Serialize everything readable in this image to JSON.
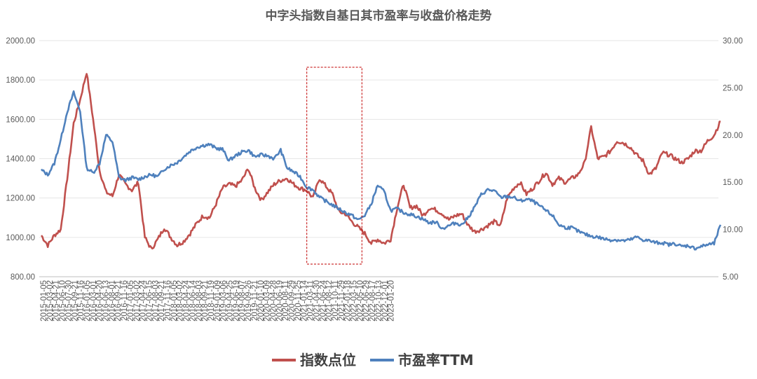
{
  "chart_data": {
    "type": "line",
    "title": "中字头指数自基日其市盈率与收盘价格走势",
    "left_axis": {
      "min": 800,
      "max": 2000,
      "ticks": [
        "800.00",
        "1000.00",
        "1200.00",
        "1400.00",
        "1600.00",
        "1800.00",
        "2000.00"
      ]
    },
    "right_axis": {
      "min": 5,
      "max": 30,
      "ticks": [
        "5.00",
        "10.00",
        "15.00",
        "20.00",
        "25.00",
        "30.00"
      ]
    },
    "x_tick_labels": [
      "2015-01-05",
      "2015-03-02",
      "2015-04-21",
      "2015-06-10",
      "2015-07-30",
      "2015-09-21",
      "2015-11-16",
      "2016-01-05",
      "2016-03-01",
      "2016-04-20",
      "2016-06-13",
      "2016-08-01",
      "2016-09-21",
      "2016-11-16",
      "2017-01-05",
      "2017-03-02",
      "2017-04-24",
      "2017-06-15",
      "2017-08-03",
      "2017-09-21",
      "2017-11-16",
      "2018-01-05",
      "2018-03-02",
      "2018-04-24",
      "2018-06-14",
      "2018-08-03",
      "2018-09-21",
      "2018-11-19",
      "2019-01-09",
      "2019-03-06",
      "2019-04-25",
      "2019-06-19",
      "2019-08-07",
      "2019-09-26",
      "2019-11-21",
      "2020-01-10",
      "2020-03-09",
      "2020-04-28",
      "2020-06-19",
      "2020-08-11",
      "2020-09-29",
      "2020-11-25",
      "2021-01-14",
      "2021-03-11",
      "2021-04-30",
      "2021-06-24",
      "2021-08-12",
      "2021-10-11",
      "2021-11-29",
      "2022-01-18",
      "2022-03-15",
      "2022-05-10",
      "2022-06-29",
      "2022-08-17",
      "2022-10-13",
      "2022-12-01",
      "2023-01-20"
    ],
    "legend_position": "bottom",
    "highlight_box": {
      "from": "2021-01-14",
      "to": "2022-05-10"
    },
    "series": [
      {
        "name": "指数点位",
        "axis": "left",
        "color": "#c0504d",
        "values": [
          1010,
          960,
          1010,
          1040,
          1300,
          1580,
          1700,
          1840,
          1600,
          1340,
          1230,
          1210,
          1320,
          1270,
          1240,
          1280,
          1000,
          940,
          990,
          1050,
          1000,
          960,
          980,
          1020,
          1070,
          1110,
          1100,
          1170,
          1250,
          1270,
          1260,
          1290,
          1350,
          1250,
          1190,
          1230,
          1270,
          1290,
          1300,
          1270,
          1250,
          1240,
          1200,
          1300,
          1260,
          1220,
          1130,
          1120,
          1080,
          1050,
          1020,
          970,
          990,
          970,
          990,
          1150,
          1270,
          1150,
          1160,
          1110,
          1150,
          1140,
          1120,
          1090,
          1110,
          1120,
          1060,
          1030,
          1040,
          1060,
          1080,
          1060,
          1200,
          1250,
          1280,
          1220,
          1250,
          1290,
          1330,
          1270,
          1300,
          1280,
          1300,
          1320,
          1380,
          1560,
          1400,
          1410,
          1440,
          1490,
          1480,
          1460,
          1420,
          1390,
          1320,
          1350,
          1430,
          1420,
          1400,
          1380,
          1400,
          1440,
          1440,
          1490,
          1520,
          1590
        ]
      },
      {
        "name": "市盈率TTM",
        "axis": "right",
        "color": "#4f81bd",
        "values": [
          16.3,
          15.8,
          17.0,
          19.5,
          22.5,
          24.5,
          22.5,
          16.5,
          16.0,
          17.0,
          20.0,
          19.3,
          15.5,
          15.2,
          15.5,
          15.3,
          15.6,
          15.8,
          15.6,
          16.4,
          16.8,
          17.1,
          17.7,
          18.3,
          18.7,
          18.9,
          19.0,
          18.6,
          18.5,
          17.3,
          17.8,
          18.2,
          18.4,
          17.7,
          17.9,
          17.8,
          17.5,
          18.4,
          16.5,
          16.1,
          15.6,
          14.5,
          14.2,
          13.4,
          13.0,
          12.6,
          12.2,
          11.8,
          11.5,
          11.0,
          11.5,
          12.7,
          14.7,
          14.0,
          12.0,
          12.2,
          11.8,
          11.6,
          11.4,
          11.1,
          10.7,
          10.8,
          10.1,
          10.4,
          10.7,
          10.5,
          11.3,
          12.4,
          13.7,
          14.2,
          14.1,
          13.4,
          13.5,
          13.4,
          13.0,
          13.2,
          13.0,
          12.5,
          12.0,
          11.5,
          10.5,
          10.2,
          10.2,
          9.8,
          9.5,
          9.3,
          9.2,
          9.0,
          8.9,
          8.9,
          8.8,
          8.9,
          9.2,
          8.9,
          8.8,
          8.6,
          8.6,
          8.4,
          8.5,
          8.2,
          8.3,
          8.0,
          8.2,
          8.4,
          8.5,
          10.5
        ]
      }
    ]
  }
}
